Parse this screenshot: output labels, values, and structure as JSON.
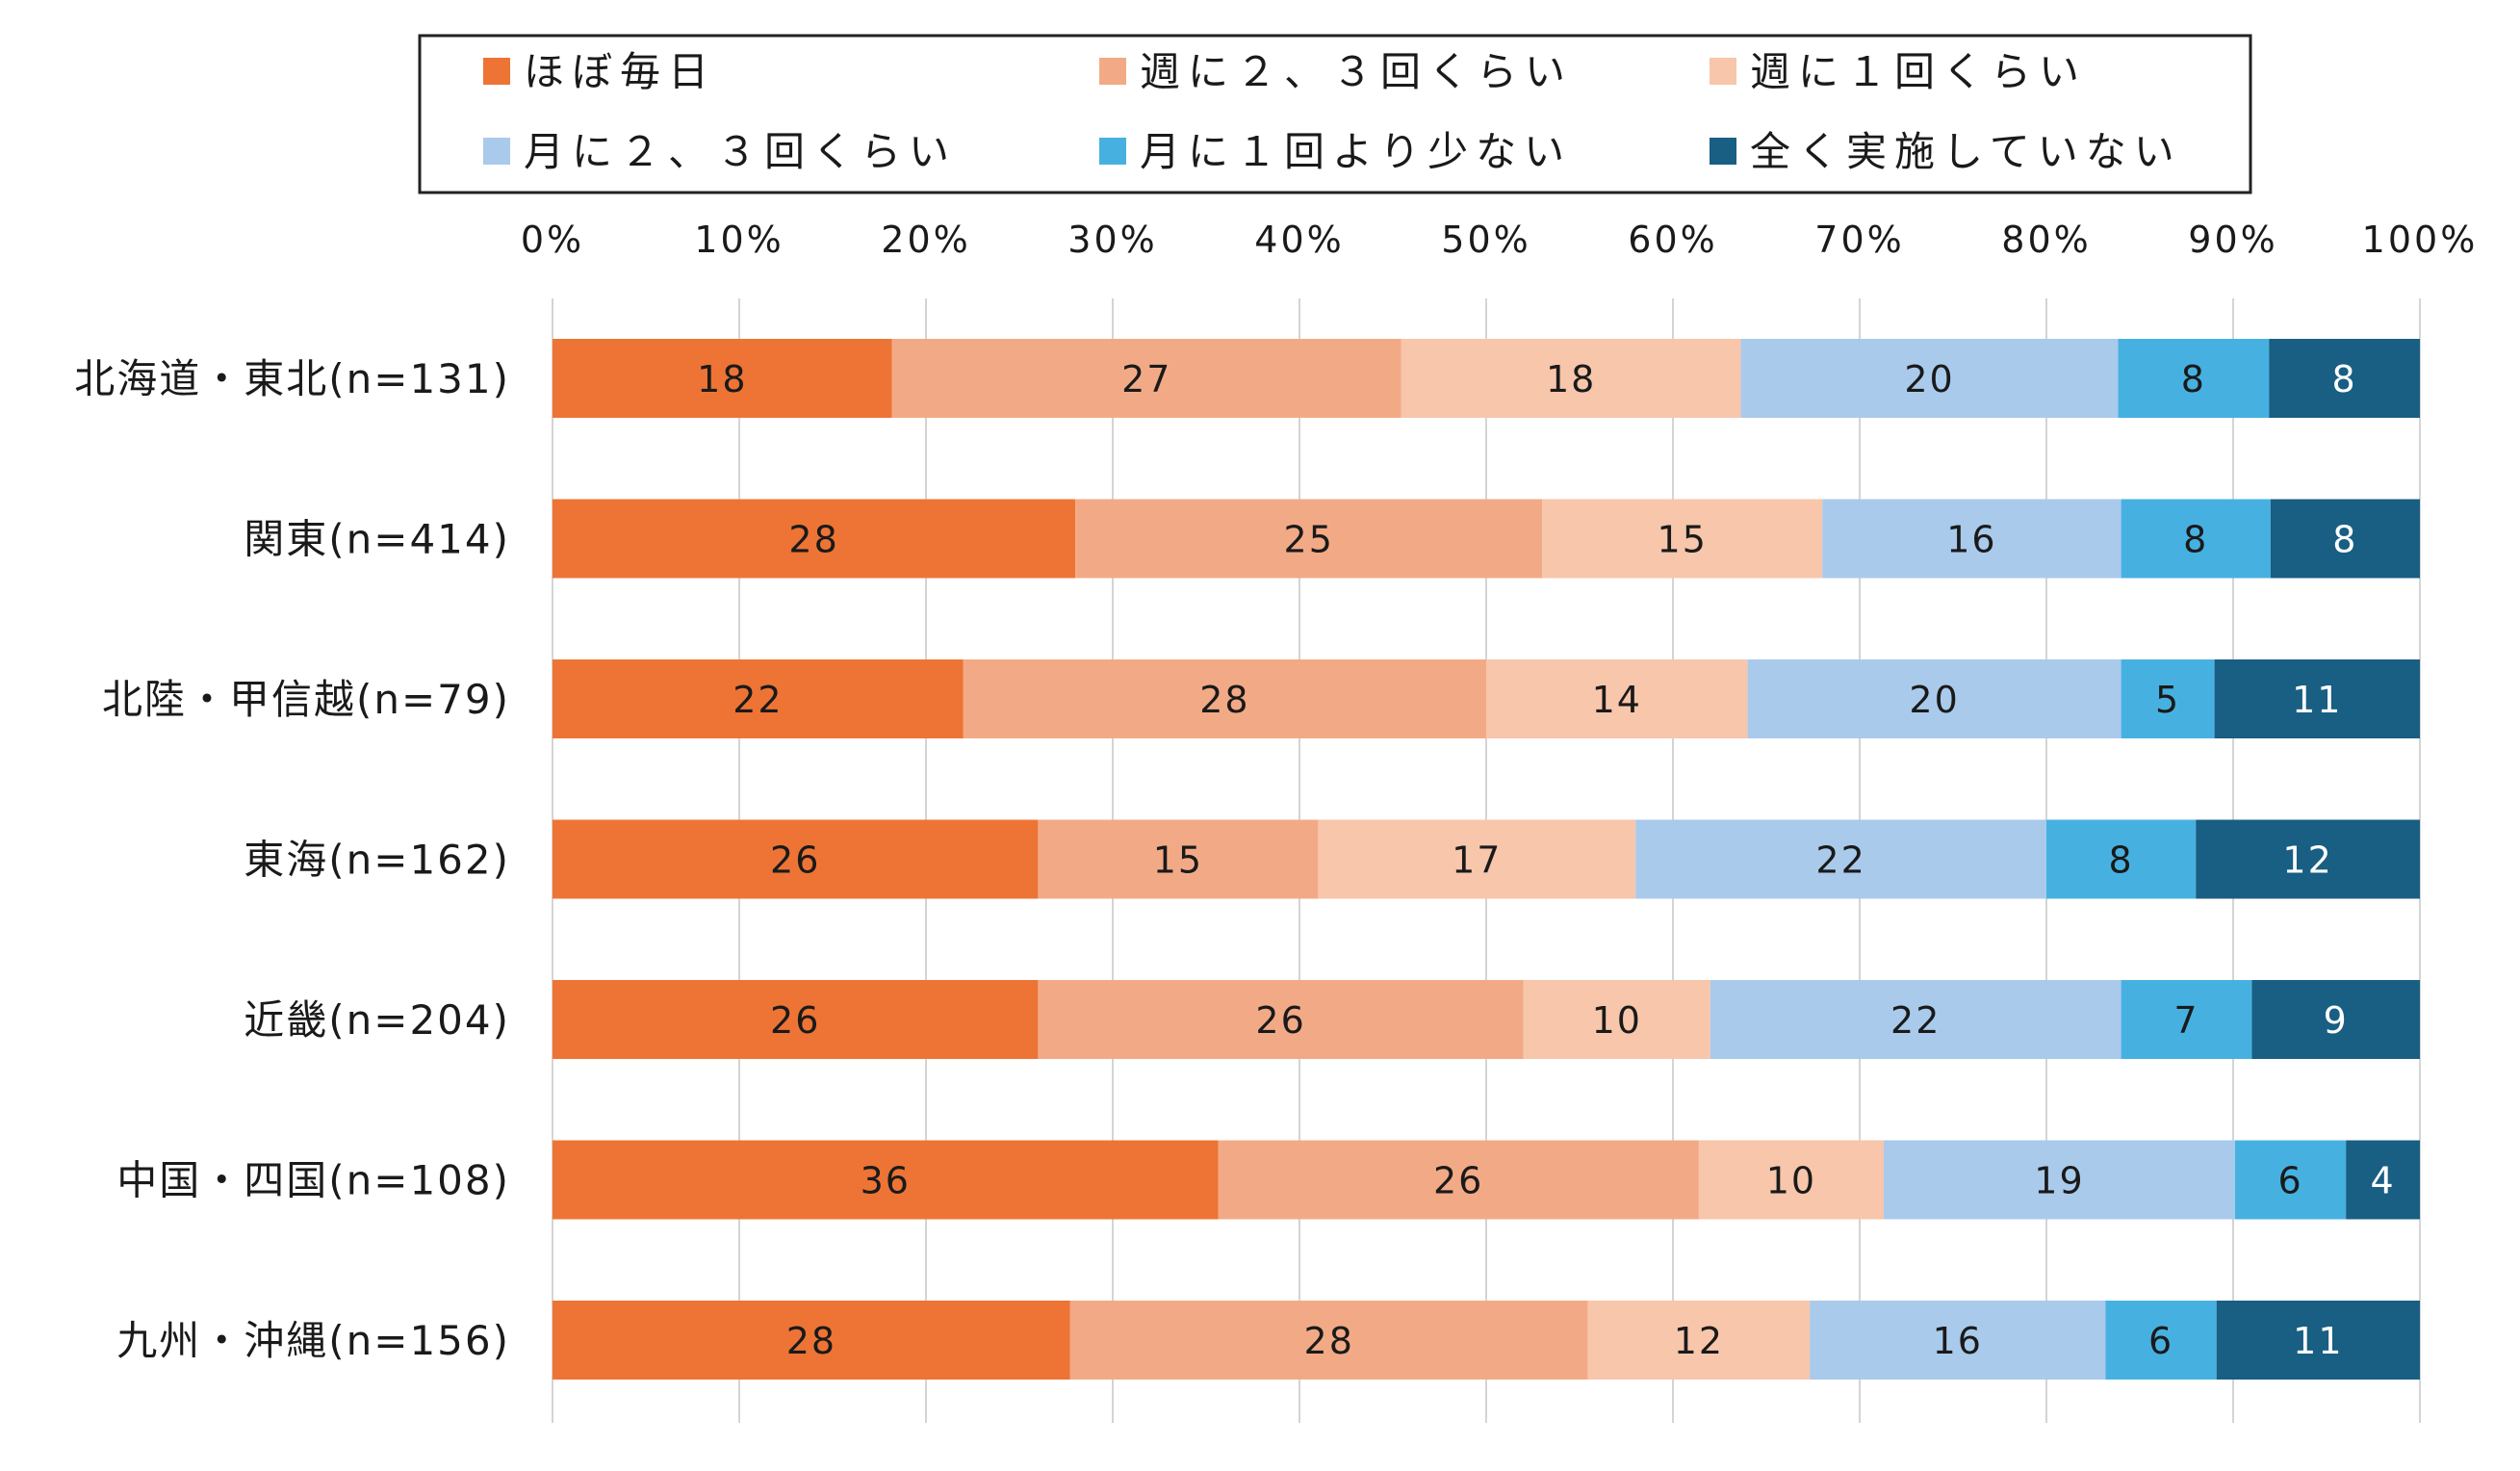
{
  "chart_data": {
    "type": "bar",
    "orientation": "horizontal",
    "stacked": true,
    "legend_position": "top",
    "grid": true,
    "xlim": [
      0,
      100
    ],
    "x_ticks": [
      "0%",
      "10%",
      "20%",
      "30%",
      "40%",
      "50%",
      "60%",
      "70%",
      "80%",
      "90%",
      "100%"
    ],
    "categories": [
      "北海道・東北(n=131)",
      "関東(n=414)",
      "北陸・甲信越(n=79)",
      "東海(n=162)",
      "近畿(n=204)",
      "中国・四国(n=108)",
      "九州・沖縄(n=156)"
    ],
    "series": [
      {
        "name": "ほぼ毎日",
        "color": "#ED7435",
        "label_color": "#1a1a1a",
        "values": [
          18,
          28,
          22,
          26,
          26,
          36,
          28
        ]
      },
      {
        "name": "週に２、３回くらい",
        "color": "#F2AA86",
        "label_color": "#1a1a1a",
        "values": [
          27,
          25,
          28,
          15,
          26,
          26,
          28
        ]
      },
      {
        "name": "週に１回くらい",
        "color": "#F7C6AB",
        "label_color": "#1a1a1a",
        "values": [
          18,
          15,
          14,
          17,
          10,
          10,
          12
        ]
      },
      {
        "name": "月に２、３回くらい",
        "color": "#A9CAEB",
        "label_color": "#1a1a1a",
        "values": [
          20,
          16,
          20,
          22,
          22,
          19,
          16
        ]
      },
      {
        "name": "月に１回より少ない",
        "color": "#46B1E1",
        "label_color": "#1a1a1a",
        "values": [
          8,
          8,
          5,
          8,
          7,
          6,
          6
        ]
      },
      {
        "name": "全く実施していない",
        "color": "#195E83",
        "label_color": "#ffffff",
        "values": [
          8,
          8,
          11,
          12,
          9,
          4,
          11
        ]
      }
    ]
  }
}
